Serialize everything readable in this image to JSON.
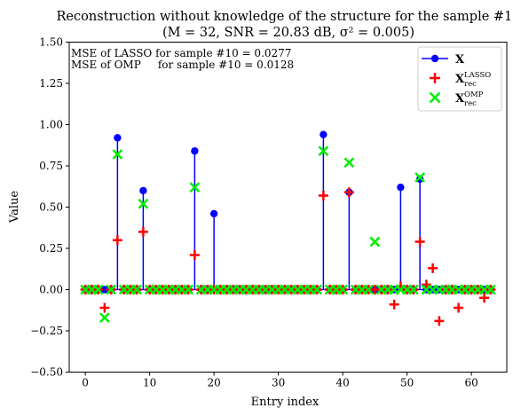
{
  "chart_data": {
    "type": "scatter",
    "title_line1": "Reconstruction without knowledge of the structure for the sample #10",
    "title_line2": "(M = 32, SNR = 20.83 dB, σ² = 0.005)",
    "xlabel": "Entry index",
    "ylabel": "Value",
    "xlim": [
      -2.5,
      65.5
    ],
    "ylim": [
      -0.5,
      1.5
    ],
    "xticks": [
      0,
      10,
      20,
      30,
      40,
      50,
      60
    ],
    "yticks": [
      -0.5,
      -0.25,
      0.0,
      0.25,
      0.5,
      0.75,
      1.0,
      1.25,
      1.5
    ],
    "ytick_labels": [
      "−0.50",
      "−0.25",
      "0.00",
      "0.25",
      "0.50",
      "0.75",
      "1.00",
      "1.25",
      "1.50"
    ],
    "n_entries": 64,
    "annotations": [
      "MSE of LASSO for sample #10 = 0.0277",
      "MSE of OMP     for sample #10 = 0.0128"
    ],
    "legend": {
      "placement": "top-right",
      "entries": [
        "X",
        "X_rec^LASSO",
        "X_rec^OMP"
      ]
    },
    "colors": {
      "X": "#0000ff",
      "LASSO": "#ff0000",
      "OMP": "#00ee00"
    },
    "series": [
      {
        "name": "X",
        "marker": "stem-circle",
        "points": [
          [
            5,
            0.92
          ],
          [
            9,
            0.6
          ],
          [
            17,
            0.84
          ],
          [
            20,
            0.46
          ],
          [
            37,
            0.94
          ],
          [
            41,
            0.59
          ],
          [
            49,
            0.62
          ],
          [
            52,
            0.67
          ]
        ]
      },
      {
        "name": "X_rec^LASSO",
        "marker": "plus",
        "points": [
          [
            3,
            -0.11
          ],
          [
            5,
            0.3
          ],
          [
            9,
            0.35
          ],
          [
            17,
            0.21
          ],
          [
            37,
            0.57
          ],
          [
            41,
            0.59
          ],
          [
            48,
            -0.09
          ],
          [
            49,
            0.02
          ],
          [
            52,
            0.29
          ],
          [
            53,
            0.03
          ],
          [
            54,
            0.13
          ],
          [
            55,
            -0.19
          ],
          [
            58,
            -0.11
          ],
          [
            62,
            -0.05
          ]
        ]
      },
      {
        "name": "X_rec^OMP",
        "marker": "x",
        "points": [
          [
            3,
            -0.17
          ],
          [
            5,
            0.82
          ],
          [
            9,
            0.52
          ],
          [
            17,
            0.62
          ],
          [
            37,
            0.84
          ],
          [
            41,
            0.77
          ],
          [
            45,
            0.29
          ],
          [
            52,
            0.68
          ]
        ]
      }
    ]
  }
}
